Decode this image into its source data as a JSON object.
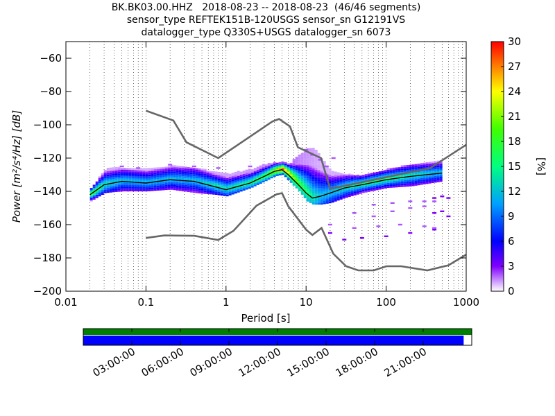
{
  "chart_data": {
    "type": "heatmap",
    "title_lines": [
      "BK.BK03.00.HHZ   2018-08-23 -- 2018-08-23  (46/46 segments)",
      "sensor_type REFTEK151B-120USGS sensor_sn G12191VS",
      "datalogger_type Q330S+USGS datalogger_sn 6073"
    ],
    "xlabel": "Period [s]",
    "ylabel": "Power [m²/s⁴/Hz] [dB]",
    "x_scale": "log",
    "xlim": [
      0.01,
      1000
    ],
    "ylim": [
      -200,
      -50
    ],
    "x_ticks": [
      0.01,
      0.1,
      1,
      10,
      100,
      1000
    ],
    "x_tick_labels": [
      "0.01",
      "0.1",
      "1",
      "10",
      "100",
      "1000"
    ],
    "y_ticks": [
      -200,
      -180,
      -160,
      -140,
      -120,
      -100,
      -80,
      -60
    ],
    "y_tick_labels": [
      "−200",
      "−180",
      "−160",
      "−140",
      "−120",
      "−100",
      "−80",
      "−60"
    ],
    "grid": "dotted vertical lines at log subdivisions",
    "colorbar": {
      "label": "[%]",
      "range": [
        0,
        30
      ],
      "ticks": [
        0,
        3,
        6,
        9,
        12,
        15,
        18,
        21,
        24,
        27,
        30
      ],
      "tick_labels": [
        "0",
        "3",
        "6",
        "9",
        "12",
        "15",
        "18",
        "21",
        "24",
        "27",
        "30"
      ]
    },
    "noise_model_high": {
      "x": [
        0.1,
        0.22,
        0.32,
        0.8,
        3.8,
        4.6,
        6.3,
        7.9,
        15.4,
        20,
        354.8,
        1000
      ],
      "y": [
        -91.5,
        -97.4,
        -110.5,
        -120,
        -98,
        -96.5,
        -101,
        -113.5,
        -120,
        -138.5,
        -126,
        -112
      ]
    },
    "noise_model_low": {
      "x": [
        0.1,
        0.17,
        0.4,
        0.8,
        1.24,
        2.4,
        4.3,
        5,
        6,
        10,
        12,
        15.6,
        21.9,
        31.6,
        45,
        70,
        101,
        154,
        328,
        600,
        1000
      ],
      "y": [
        -168,
        -166.5,
        -166.7,
        -169.2,
        -163.7,
        -148.6,
        -141.7,
        -141.1,
        -149,
        -163,
        -166.2,
        -162,
        -177.5,
        -185,
        -187.5,
        -187.5,
        -185,
        -185,
        -187.5,
        -184.4,
        -178
      ]
    },
    "mode_curve": {
      "x": [
        0.02,
        0.03,
        0.05,
        0.1,
        0.2,
        0.4,
        0.7,
        1,
        2,
        3,
        4,
        5,
        6,
        8,
        10,
        12,
        15,
        20,
        30,
        50,
        100,
        200,
        500
      ],
      "y": [
        -142,
        -136,
        -134,
        -135,
        -133,
        -134,
        -137,
        -139,
        -135,
        -131,
        -128,
        -127,
        -130,
        -136,
        -141,
        -144,
        -143,
        -141,
        -138,
        -136,
        -133,
        -131,
        -129
      ]
    },
    "density": [
      {
        "x": 0.02,
        "ylow": -146,
        "yhigh": -139,
        "peak": 20
      },
      {
        "x": 0.03,
        "ylow": -141,
        "yhigh": -127,
        "peak": 14
      },
      {
        "x": 0.05,
        "ylow": -140,
        "yhigh": -126,
        "peak": 12
      },
      {
        "x": 0.1,
        "ylow": -140,
        "yhigh": -127,
        "peak": 12
      },
      {
        "x": 0.2,
        "ylow": -139,
        "yhigh": -125,
        "peak": 12
      },
      {
        "x": 0.4,
        "ylow": -141,
        "yhigh": -126,
        "peak": 12
      },
      {
        "x": 0.7,
        "ylow": -142,
        "yhigh": -129,
        "peak": 14
      },
      {
        "x": 1,
        "ylow": -143,
        "yhigh": -130,
        "peak": 14
      },
      {
        "x": 2,
        "ylow": -138,
        "yhigh": -127,
        "peak": 16
      },
      {
        "x": 3,
        "ylow": -134,
        "yhigh": -124,
        "peak": 18
      },
      {
        "x": 4,
        "ylow": -131,
        "yhigh": -123,
        "peak": 24
      },
      {
        "x": 5,
        "ylow": -130,
        "yhigh": -123,
        "peak": 29
      },
      {
        "x": 6,
        "ylow": -134,
        "yhigh": -124,
        "peak": 24
      },
      {
        "x": 8,
        "ylow": -140,
        "yhigh": -118,
        "peak": 18
      },
      {
        "x": 10,
        "ylow": -146,
        "yhigh": -115,
        "peak": 16
      },
      {
        "x": 12,
        "ylow": -148,
        "yhigh": -114,
        "peak": 14
      },
      {
        "x": 15,
        "ylow": -148,
        "yhigh": -120,
        "peak": 12
      },
      {
        "x": 20,
        "ylow": -147,
        "yhigh": -128,
        "peak": 12
      },
      {
        "x": 30,
        "ylow": -144,
        "yhigh": -130,
        "peak": 14
      },
      {
        "x": 50,
        "ylow": -141,
        "yhigh": -131,
        "peak": 16
      },
      {
        "x": 100,
        "ylow": -138,
        "yhigh": -127,
        "peak": 16
      },
      {
        "x": 200,
        "ylow": -137,
        "yhigh": -124,
        "peak": 14
      },
      {
        "x": 500,
        "ylow": -134,
        "yhigh": -122,
        "peak": 12
      }
    ],
    "outliers": [
      {
        "x": [
          20,
          30,
          50,
          100,
          200,
          400
        ],
        "y": [
          -165,
          -169,
          -168,
          -167,
          -165,
          -163
        ],
        "level": 3
      },
      {
        "x": [
          20,
          40,
          80,
          150,
          300,
          400
        ],
        "y": [
          -160,
          -162,
          -161,
          -160,
          -161,
          -162
        ],
        "level": 2
      },
      {
        "x": [
          40,
          70,
          120,
          200,
          300
        ],
        "y": [
          -153,
          -155,
          -152,
          -150,
          -149
        ],
        "level": 2
      },
      {
        "x": [
          70,
          120,
          200,
          300,
          400
        ],
        "y": [
          -148,
          -147,
          -146,
          -146,
          -146
        ],
        "level": 2
      },
      {
        "x": [
          400,
          500,
          600
        ],
        "y": [
          -153,
          -152,
          -155
        ],
        "level": 3
      },
      {
        "x": [
          400,
          500,
          600
        ],
        "y": [
          -144,
          -143,
          -144
        ],
        "level": 3
      },
      {
        "x": [
          10,
          12,
          15,
          18,
          22
        ],
        "y": [
          -115,
          -118,
          -121,
          -125,
          -120
        ],
        "level": 2
      },
      {
        "x": [
          0.05,
          0.08,
          0.2,
          0.4,
          0.8,
          2
        ],
        "y": [
          -125,
          -126,
          -124,
          -125,
          -126,
          -125
        ],
        "level": 2
      }
    ]
  },
  "coverage": {
    "time_tick_labels": [
      "03:00:00",
      "06:00:00",
      "09:00:00",
      "12:00:00",
      "15:00:00",
      "18:00:00",
      "21:00:00"
    ],
    "time_tick_hours": [
      3,
      6,
      9,
      12,
      15,
      18,
      21
    ],
    "span_hours": 24,
    "data_coverage": [
      0,
      23.5
    ],
    "psd_coverage": [
      0,
      24
    ],
    "colors": {
      "data": "#0000ff",
      "psd": "#008000"
    }
  }
}
